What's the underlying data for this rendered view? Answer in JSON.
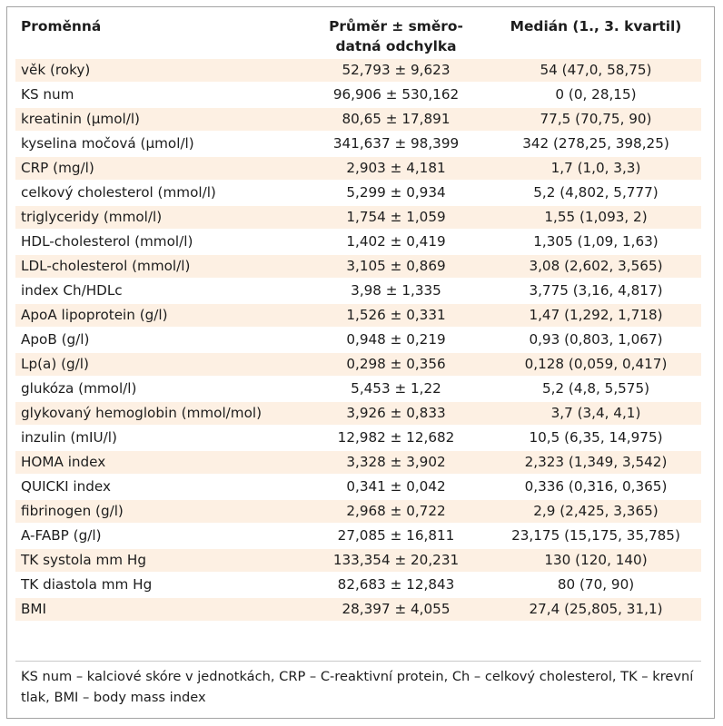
{
  "table": {
    "headers": [
      "Proměnná",
      "Průměr ± směro-\ndatná odchylka",
      "Medián (1., 3. kvartil)"
    ],
    "rows": [
      [
        "věk (roky)",
        "52,793 ± 9,623",
        "54 (47,0, 58,75)"
      ],
      [
        "KS num",
        "96,906 ± 530,162",
        "0 (0, 28,15)"
      ],
      [
        "kreatinin (μmol/l)",
        "80,65 ± 17,891",
        "77,5 (70,75, 90)"
      ],
      [
        "kyselina močová (μmol/l)",
        "341,637 ± 98,399",
        "342 (278,25, 398,25)"
      ],
      [
        "CRP (mg/l)",
        "2,903 ± 4,181",
        "1,7 (1,0, 3,3)"
      ],
      [
        "celkový cholesterol (mmol/l)",
        "5,299 ± 0,934",
        "5,2 (4,802, 5,777)"
      ],
      [
        "triglyceridy (mmol/l)",
        "1,754 ± 1,059",
        "1,55 (1,093, 2)"
      ],
      [
        "HDL-cholesterol (mmol/l)",
        "1,402 ± 0,419",
        "1,305 (1,09, 1,63)"
      ],
      [
        "LDL-cholesterol (mmol/l)",
        "3,105 ± 0,869",
        "3,08 (2,602, 3,565)"
      ],
      [
        "index Ch/HDLc",
        "3,98 ± 1,335",
        "3,775 (3,16, 4,817)"
      ],
      [
        "ApoA lipoprotein (g/l)",
        "1,526 ± 0,331",
        "1,47 (1,292, 1,718)"
      ],
      [
        "ApoB (g/l)",
        "0,948 ± 0,219",
        "0,93 (0,803, 1,067)"
      ],
      [
        "Lp(a) (g/l)",
        "0,298 ± 0,356",
        "0,128 (0,059, 0,417)"
      ],
      [
        "glukóza (mmol/l)",
        "5,453 ± 1,22",
        "5,2 (4,8, 5,575)"
      ],
      [
        "glykovaný hemoglobin (mmol/mol)",
        "3,926 ± 0,833",
        "3,7 (3,4, 4,1)"
      ],
      [
        "inzulin (mIU/l)",
        "12,982 ± 12,682",
        "10,5 (6,35, 14,975)"
      ],
      [
        "HOMA index",
        "3,328 ± 3,902",
        "2,323 (1,349, 3,542)"
      ],
      [
        "QUICKI index",
        "0,341 ± 0,042",
        "0,336 (0,316, 0,365)"
      ],
      [
        "fibrinogen (g/l)",
        "2,968 ± 0,722",
        "2,9 (2,425, 3,365)"
      ],
      [
        "A-FABP (g/l)",
        "27,085 ± 16,811",
        "23,175 (15,175, 35,785)"
      ],
      [
        "TK systola mm Hg",
        "133,354 ± 20,231",
        "130 (120, 140)"
      ],
      [
        "TK diastola mm Hg",
        "82,683 ± 12,843",
        "80 (70, 90)"
      ],
      [
        "BMI",
        "28,397 ± 4,055",
        "27,4 (25,805, 31,1)"
      ]
    ]
  },
  "footnote": "KS num – kalciové skóre v jednotkách, CRP – C-reaktivní protein, Ch – celkový cholesterol, TK – krevní tlak, BMI – body mass index",
  "colors": {
    "stripe": "#fdf0e3",
    "text": "#1d1d1d",
    "border": "#a3a3a3"
  }
}
